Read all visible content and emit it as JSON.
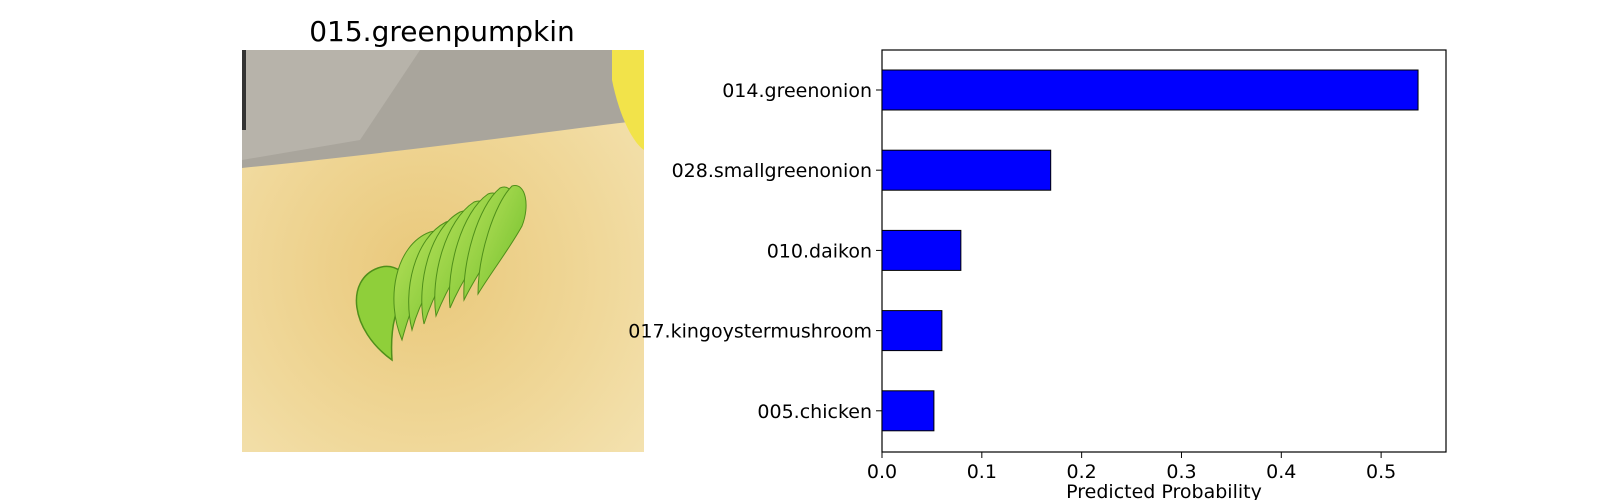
{
  "image_panel": {
    "title": "015.greenpumpkin",
    "subject": "sliced green vegetable on cutting board"
  },
  "chart_data": {
    "type": "bar",
    "orientation": "horizontal",
    "categories": [
      "014.greenonion",
      "028.smallgreenonion",
      "010.daikon",
      "017.kingoystermushroom",
      "005.chicken"
    ],
    "values": [
      0.537,
      0.169,
      0.079,
      0.06,
      0.052
    ],
    "xlabel": "Predicted Probability",
    "ylabel": "",
    "xlim": [
      0,
      0.565
    ],
    "xticks": [
      "0.0",
      "0.1",
      "0.2",
      "0.3",
      "0.4",
      "0.5"
    ],
    "grid": false,
    "bar_color": "#0000ff",
    "bar_edge_color": "#000000"
  }
}
